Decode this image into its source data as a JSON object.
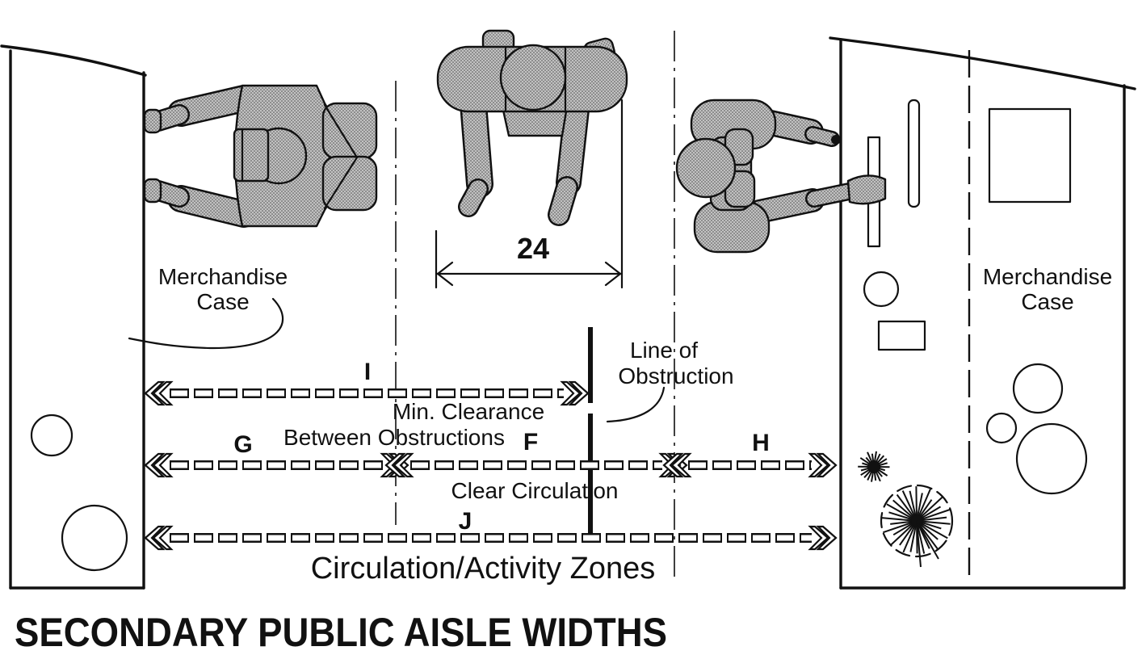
{
  "title": "SECONDARY PUBLIC AISLE WIDTHS",
  "colors": {
    "ink": "#111111",
    "paper": "#ffffff",
    "figure_tone": "#c2c2c2"
  },
  "left_case": {
    "label_line1": "Merchandise",
    "label_line2": "Case"
  },
  "right_case": {
    "label_line1": "Merchandise",
    "label_line2": "Case"
  },
  "body_width": {
    "value": "24"
  },
  "obstruction": {
    "label_line1": "Line of",
    "label_line2": "Obstruction"
  },
  "dimension_letters": {
    "i": "I",
    "g": "G",
    "f": "F",
    "h": "H",
    "j": "J"
  },
  "captions": {
    "min_clearance_line1": "Min. Clearance",
    "min_clearance_line2": "Between Obstructions",
    "clear_circulation": "Clear Circulation",
    "circulation_zones": "Circulation/Activity Zones"
  }
}
